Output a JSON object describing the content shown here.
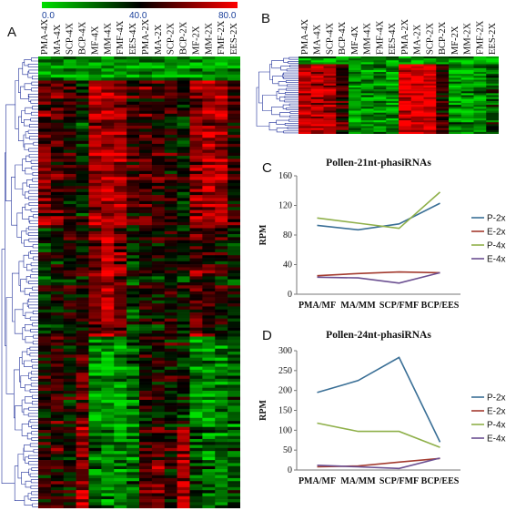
{
  "panels": {
    "a": "A",
    "b": "B",
    "c": "C",
    "d": "D"
  },
  "colorbar": {
    "ticks": [
      "0.0",
      "40.0",
      "80.0"
    ],
    "colors": {
      "low": "#00e000",
      "mid": "#000000",
      "high": "#ff0000"
    }
  },
  "heatmap_a": {
    "columns": [
      "PMA-4X",
      "MA-4X",
      "SCP-4X",
      "BCP-4X",
      "MF-4X",
      "MM-4X",
      "FMF-4X",
      "EES-4X",
      "PMA-2X",
      "MA-2X",
      "SCP-2X",
      "BCP-2X",
      "MF-2X",
      "MM-2X",
      "FMF-2X",
      "EES-2X"
    ]
  },
  "heatmap_b": {
    "columns": [
      "PMA-4X",
      "MA-4X",
      "SCP-4X",
      "BCP-4X",
      "MF-4X",
      "MM-4X",
      "FMF-4X",
      "EES-4X",
      "PMA-2X",
      "MA-2X",
      "SCP-2X",
      "BCP-2X",
      "MF-2X",
      "MM-2X",
      "FMF-2X",
      "EES-2X"
    ]
  },
  "chart_data": [
    {
      "type": "heatmap",
      "panel": "A",
      "columns": [
        "PMA-4X",
        "MA-4X",
        "SCP-4X",
        "BCP-4X",
        "MF-4X",
        "MM-4X",
        "FMF-4X",
        "EES-4X",
        "PMA-2X",
        "MA-2X",
        "SCP-2X",
        "BCP-2X",
        "MF-2X",
        "MM-2X",
        "FMF-2X",
        "EES-2X"
      ],
      "value_range": [
        0,
        80
      ],
      "dendrogram": "rows"
    },
    {
      "type": "heatmap",
      "panel": "B",
      "columns": [
        "PMA-4X",
        "MA-4X",
        "SCP-4X",
        "BCP-4X",
        "MF-4X",
        "MM-4X",
        "FMF-4X",
        "EES-4X",
        "PMA-2X",
        "MA-2X",
        "SCP-2X",
        "BCP-2X",
        "MF-2X",
        "MM-2X",
        "FMF-2X",
        "EES-2X"
      ],
      "value_range": [
        0,
        80
      ],
      "dendrogram": "rows"
    },
    {
      "type": "line",
      "panel": "C",
      "title": "Pollen-21nt-phasiRNAs",
      "ylabel": "RPM",
      "categories": [
        "PMA/MF",
        "MA/MM",
        "SCP/FMF",
        "BCP/EES"
      ],
      "ylim": [
        0,
        160
      ],
      "yticks": [
        0,
        40,
        80,
        120,
        160
      ],
      "legend_position": "right",
      "series": [
        {
          "name": "P-2x",
          "color": "#3a6f96",
          "values": [
            93,
            87,
            95,
            123
          ]
        },
        {
          "name": "E-2x",
          "color": "#a33b2f",
          "values": [
            25,
            28,
            30,
            29
          ]
        },
        {
          "name": "P-4x",
          "color": "#8fb04a",
          "values": [
            103,
            96,
            89,
            138
          ]
        },
        {
          "name": "E-4x",
          "color": "#6b4f91",
          "values": [
            23,
            22,
            15,
            29
          ]
        }
      ]
    },
    {
      "type": "line",
      "panel": "D",
      "title": "Pollen-24nt-phasiRNAs",
      "ylabel": "RPM",
      "categories": [
        "PMA/MF",
        "MA/MM",
        "SCP/FMF",
        "BCP/EES"
      ],
      "ylim": [
        0,
        300
      ],
      "yticks": [
        0,
        50,
        100,
        150,
        200,
        250,
        300
      ],
      "legend_position": "right",
      "series": [
        {
          "name": "P-2x",
          "color": "#3a6f96",
          "values": [
            195,
            225,
            283,
            70
          ]
        },
        {
          "name": "E-2x",
          "color": "#a33b2f",
          "values": [
            8,
            10,
            20,
            29
          ]
        },
        {
          "name": "P-4x",
          "color": "#8fb04a",
          "values": [
            118,
            97,
            97,
            57
          ]
        },
        {
          "name": "E-4x",
          "color": "#6b4f91",
          "values": [
            12,
            8,
            4,
            30
          ]
        }
      ]
    }
  ]
}
